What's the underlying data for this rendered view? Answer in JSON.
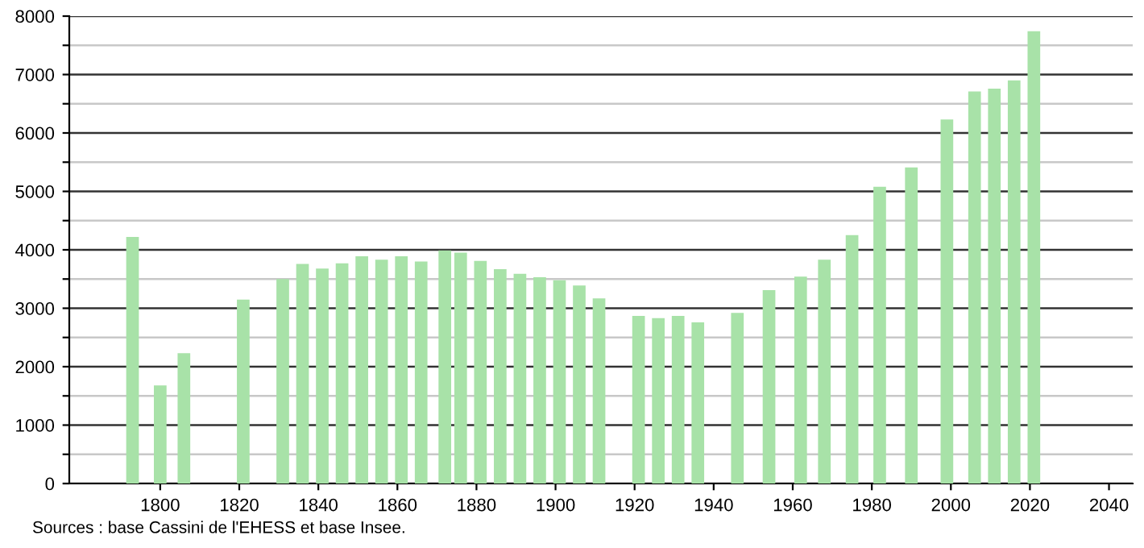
{
  "chart_data": {
    "type": "bar",
    "x": [
      1793,
      1800,
      1806,
      1821,
      1831,
      1836,
      1841,
      1846,
      1851,
      1856,
      1861,
      1866,
      1872,
      1876,
      1881,
      1886,
      1891,
      1896,
      1901,
      1906,
      1911,
      1921,
      1926,
      1931,
      1936,
      1946,
      1954,
      1962,
      1968,
      1975,
      1982,
      1990,
      1999,
      2006,
      2011,
      2016,
      2021
    ],
    "values": [
      4220,
      1680,
      2230,
      3150,
      3500,
      3760,
      3680,
      3770,
      3890,
      3830,
      3890,
      3800,
      3990,
      3950,
      3810,
      3670,
      3590,
      3530,
      3480,
      3390,
      3170,
      2870,
      2830,
      2870,
      2760,
      2920,
      3310,
      3540,
      3830,
      4250,
      5080,
      5410,
      6230,
      6710,
      6760,
      6900,
      7740
    ],
    "color": "#a8e2a8",
    "xlim": [
      1777,
      2046
    ],
    "xticks": [
      1800,
      1820,
      1840,
      1860,
      1880,
      1900,
      1920,
      1940,
      1960,
      1980,
      2000,
      2020,
      2040
    ],
    "ylim": [
      0,
      8000
    ],
    "yticks": [
      0,
      {
        "value": 500,
        "label": null
      },
      1000,
      {
        "value": 1500,
        "label": null
      },
      2000,
      {
        "value": 2500,
        "label": null
      },
      3000,
      {
        "value": 3500,
        "label": null
      },
      4000,
      {
        "value": 4500,
        "label": null
      },
      5000,
      {
        "value": 5500,
        "label": null
      },
      6000,
      {
        "value": 6500,
        "label": null
      },
      7000,
      {
        "value": 7500,
        "label": null
      },
      8000
    ],
    "grid": "y",
    "annotations": [
      "Sources : base Cassini de l'EHESS et base Insee."
    ]
  }
}
